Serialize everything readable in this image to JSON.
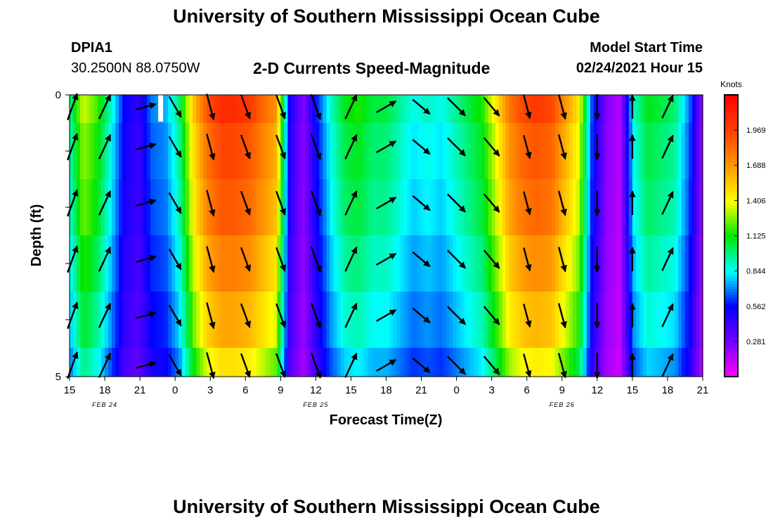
{
  "header": {
    "title": "University of Southern Mississippi Ocean Cube",
    "footer_title": "University of Southern Mississippi Ocean Cube",
    "station": "DPIA1",
    "coordinates": "30.2500N 88.0750W",
    "subtitle": "2-D Currents Speed-Magnitude",
    "model_start_label": "Model Start Time",
    "model_start_value": "02/24/2021 Hour 15"
  },
  "chart_data": {
    "type": "heatmap",
    "title": "2-D Currents Speed-Magnitude",
    "xlabel": "Forecast Time(Z)",
    "ylabel": "Depth (ft)",
    "x_ticks": [
      "15",
      "18",
      "21",
      "0",
      "3",
      "6",
      "9",
      "12",
      "15",
      "18",
      "21",
      "0",
      "3",
      "6",
      "9",
      "12",
      "15",
      "18",
      "21"
    ],
    "date_labels": [
      {
        "label": "FEB 24",
        "at_tick": 1
      },
      {
        "label": "FEB 25",
        "at_tick": 7
      },
      {
        "label": "FEB 26",
        "at_tick": 14
      }
    ],
    "x_hours_range": [
      0,
      54
    ],
    "y_tick_labels": [
      "0",
      "5"
    ],
    "ylim": [
      0,
      5
    ],
    "depth_layers": 5,
    "colorbar": {
      "unit": "Knots",
      "min": 0.0,
      "max": 2.25,
      "ticks": [
        "1.969",
        "1.688",
        "1.406",
        "1.125",
        "0.844",
        "0.562",
        "0.281"
      ],
      "tick_values": [
        1.969,
        1.688,
        1.406,
        1.125,
        0.844,
        0.562,
        0.281
      ]
    },
    "surface_speed_knots": [
      0.95,
      1.35,
      1.2,
      0.9,
      0.55,
      0.45,
      0.7,
      0.75,
      1.0,
      1.55,
      1.9,
      2.05,
      2.05,
      2.0,
      1.85,
      1.7,
      0.5,
      0.25,
      0.6,
      0.9,
      1.1,
      1.15,
      1.05,
      1.05,
      0.95,
      0.85,
      0.9,
      0.85,
      0.95,
      1.05,
      1.15,
      1.45,
      1.8,
      1.95,
      2.0,
      1.95,
      1.7,
      1.45,
      0.6,
      0.25,
      0.15,
      0.9,
      1.1,
      1.05,
      1.0,
      0.7,
      0.2
    ],
    "depth_factor": [
      1.0,
      0.95,
      0.92,
      0.86,
      0.8,
      0.72
    ],
    "arrow_hours": [
      0,
      3,
      6.5,
      9,
      12,
      15,
      18,
      21,
      24,
      27,
      30,
      33,
      36,
      39,
      42,
      45,
      48,
      51
    ],
    "arrow_dirs_deg": [
      20,
      25,
      75,
      150,
      165,
      160,
      160,
      160,
      25,
      60,
      130,
      135,
      140,
      165,
      165,
      180,
      0,
      25
    ],
    "arrow_lengths_px": [
      40,
      38,
      30,
      34,
      38,
      36,
      36,
      38,
      38,
      32,
      32,
      36,
      34,
      34,
      36,
      36,
      34,
      36
    ]
  }
}
